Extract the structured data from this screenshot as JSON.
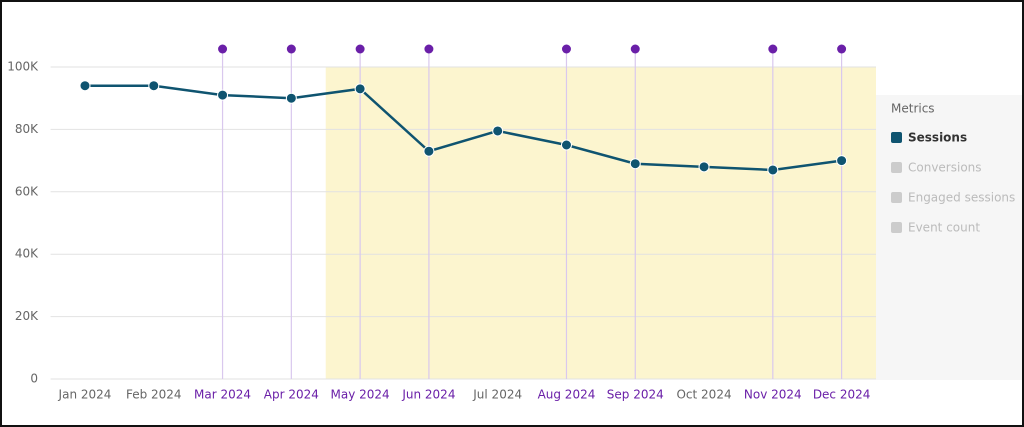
{
  "chart_data": {
    "type": "line",
    "categories": [
      "Jan 2024",
      "Feb 2024",
      "Mar 2024",
      "Apr 2024",
      "May 2024",
      "Jun 2024",
      "Jul 2024",
      "Aug 2024",
      "Sep 2024",
      "Oct 2024",
      "Nov 2024",
      "Dec 2024"
    ],
    "series": [
      {
        "name": "Sessions",
        "color": "#0f5470",
        "values": [
          94000,
          94000,
          91000,
          90000,
          93000,
          73000,
          79500,
          75000,
          69000,
          68000,
          67000,
          70000
        ]
      }
    ],
    "ylim": [
      0,
      100000
    ],
    "yticks": [
      0,
      {
        "value": 20000,
        "label": "20K"
      },
      {
        "value": 40000,
        "label": "40K"
      },
      {
        "value": 60000,
        "label": "60K"
      },
      {
        "value": 80000,
        "label": "80K"
      },
      {
        "value": 100000,
        "label": "100K"
      }
    ],
    "grid": true,
    "annotated_categories": [
      2,
      3,
      4,
      5,
      7,
      8,
      10,
      11
    ],
    "annotation_color": "#6a1fa8",
    "highlight_range": [
      3.5,
      11.5
    ],
    "highlight_color": "#fcf5cf",
    "legend": {
      "title": "Metrics",
      "inactive": [
        "Conversions",
        "Engaged sessions",
        "Event count"
      ],
      "inactive_color": "#cccccc"
    }
  }
}
